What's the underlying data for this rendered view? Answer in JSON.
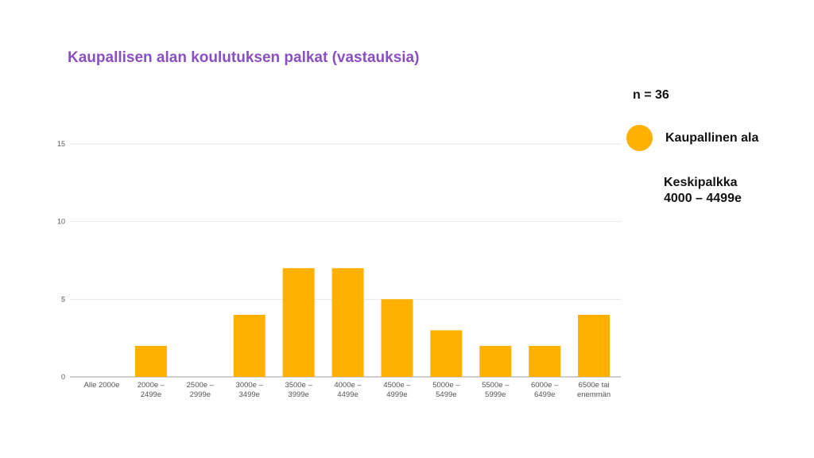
{
  "title": "Kaupallisen alan koulutuksen palkat (vastauksia)",
  "n_label": "n = 36",
  "average": {
    "line1": "Keskipalkka",
    "line2": "4000 – 4499e"
  },
  "colors": {
    "bar": "#ffb000",
    "title": "#8a4fc2",
    "grid": "#e6e6e6"
  },
  "chart_data": {
    "type": "bar",
    "categories": [
      [
        "Alle 2000e"
      ],
      [
        "2000e –",
        "2499e"
      ],
      [
        "2500e –",
        "2999e"
      ],
      [
        "3000e –",
        "3499e"
      ],
      [
        "3500e –",
        "3999e"
      ],
      [
        "4000e –",
        "4499e"
      ],
      [
        "4500e –",
        "4999e"
      ],
      [
        "5000e –",
        "5499e"
      ],
      [
        "5500e –",
        "5999e"
      ],
      [
        "6000e –",
        "6499e"
      ],
      [
        "6500e tai",
        "enemmän"
      ]
    ],
    "series": [
      {
        "name": "Kaupallinen ala",
        "values": [
          0,
          2,
          0,
          4,
          7,
          7,
          5,
          3,
          2,
          2,
          4
        ]
      }
    ],
    "ylim": [
      0,
      15
    ],
    "yticks": [
      0,
      5,
      10,
      15
    ],
    "grid": true,
    "legend_position": "right"
  }
}
